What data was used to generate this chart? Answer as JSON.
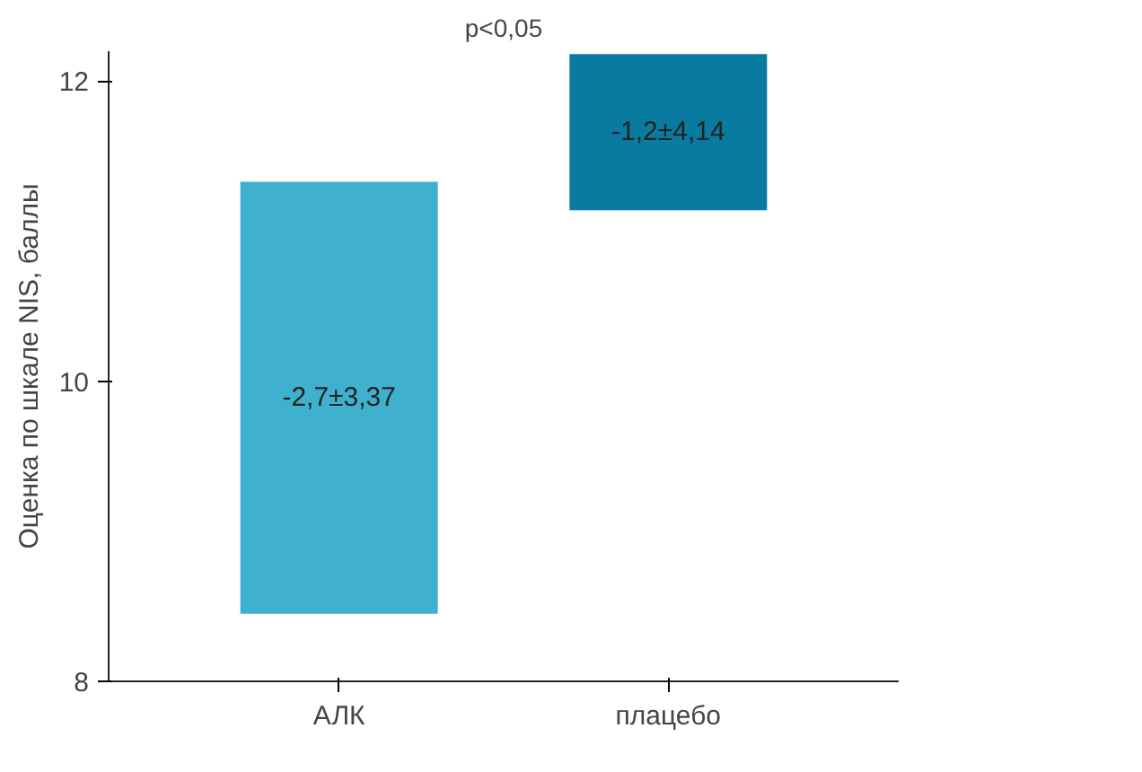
{
  "chart_data": {
    "type": "bar",
    "ylabel": "Оценка по шкале NIS, баллы",
    "categories": [
      "АЛК",
      "плацебо"
    ],
    "base": [
      8.45,
      11.14
    ],
    "values": [
      2.88,
      1.04
    ],
    "colors": [
      "#3fb1cf",
      "#0a7ba0"
    ],
    "annotations": [
      "p<0,05",
      "-2,7±3,37",
      "-1,2±4,14"
    ],
    "ylim": [
      8,
      12.2
    ],
    "yticks": [
      8,
      10,
      12
    ],
    "grid": false
  }
}
